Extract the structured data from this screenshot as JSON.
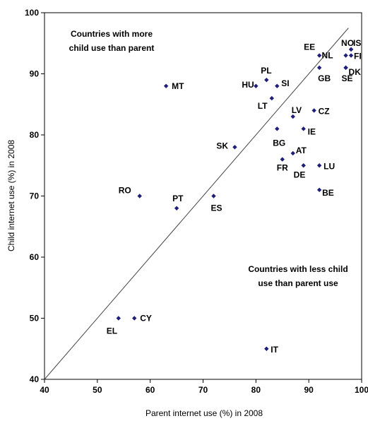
{
  "chart_data": {
    "type": "scatter",
    "xlabel": "Parent internet use (%) in 2008",
    "ylabel": "Child internet use (%) in 2008",
    "xlim": [
      40,
      100
    ],
    "ylim": [
      40,
      100
    ],
    "xticks": [
      40,
      50,
      60,
      70,
      80,
      90,
      100
    ],
    "yticks": [
      40,
      50,
      60,
      70,
      80,
      90,
      100
    ],
    "grid": false,
    "marker_color": "#1f1f7a",
    "reference_line": "y = x",
    "annotations": [
      {
        "lines": [
          "Countries with more",
          "child use than parent"
        ],
        "region": "upper-left"
      },
      {
        "lines": [
          "Countries with less child",
          "use than parent use"
        ],
        "region": "lower-right"
      }
    ],
    "points": [
      {
        "label": "NO",
        "x": 98,
        "y": 94
      },
      {
        "label": "IS",
        "x": 98,
        "y": 94
      },
      {
        "label": "FI",
        "x": 98,
        "y": 93
      },
      {
        "label": "NL",
        "x": 97,
        "y": 93
      },
      {
        "label": "DK",
        "x": 97,
        "y": 91
      },
      {
        "label": "SE",
        "x": 97,
        "y": 91
      },
      {
        "label": "EE",
        "x": 92,
        "y": 93
      },
      {
        "label": "GB",
        "x": 92,
        "y": 91
      },
      {
        "label": "PL",
        "x": 82,
        "y": 89
      },
      {
        "label": "HU",
        "x": 80,
        "y": 88
      },
      {
        "label": "SI",
        "x": 84,
        "y": 88
      },
      {
        "label": "MT",
        "x": 63,
        "y": 88
      },
      {
        "label": "LT",
        "x": 83,
        "y": 86
      },
      {
        "label": "CZ",
        "x": 91,
        "y": 84
      },
      {
        "label": "LV",
        "x": 87,
        "y": 83
      },
      {
        "label": "IE",
        "x": 89,
        "y": 81
      },
      {
        "label": "BG",
        "x": 84,
        "y": 81
      },
      {
        "label": "SK",
        "x": 76,
        "y": 78
      },
      {
        "label": "AT",
        "x": 87,
        "y": 77
      },
      {
        "label": "FR",
        "x": 85,
        "y": 76
      },
      {
        "label": "LU",
        "x": 92,
        "y": 75
      },
      {
        "label": "DE",
        "x": 89,
        "y": 75
      },
      {
        "label": "BE",
        "x": 92,
        "y": 71
      },
      {
        "label": "RO",
        "x": 58,
        "y": 70
      },
      {
        "label": "ES",
        "x": 72,
        "y": 70
      },
      {
        "label": "PT",
        "x": 65,
        "y": 68
      },
      {
        "label": "EL",
        "x": 54,
        "y": 50
      },
      {
        "label": "CY",
        "x": 57,
        "y": 50
      },
      {
        "label": "IT",
        "x": 82,
        "y": 45
      }
    ]
  }
}
